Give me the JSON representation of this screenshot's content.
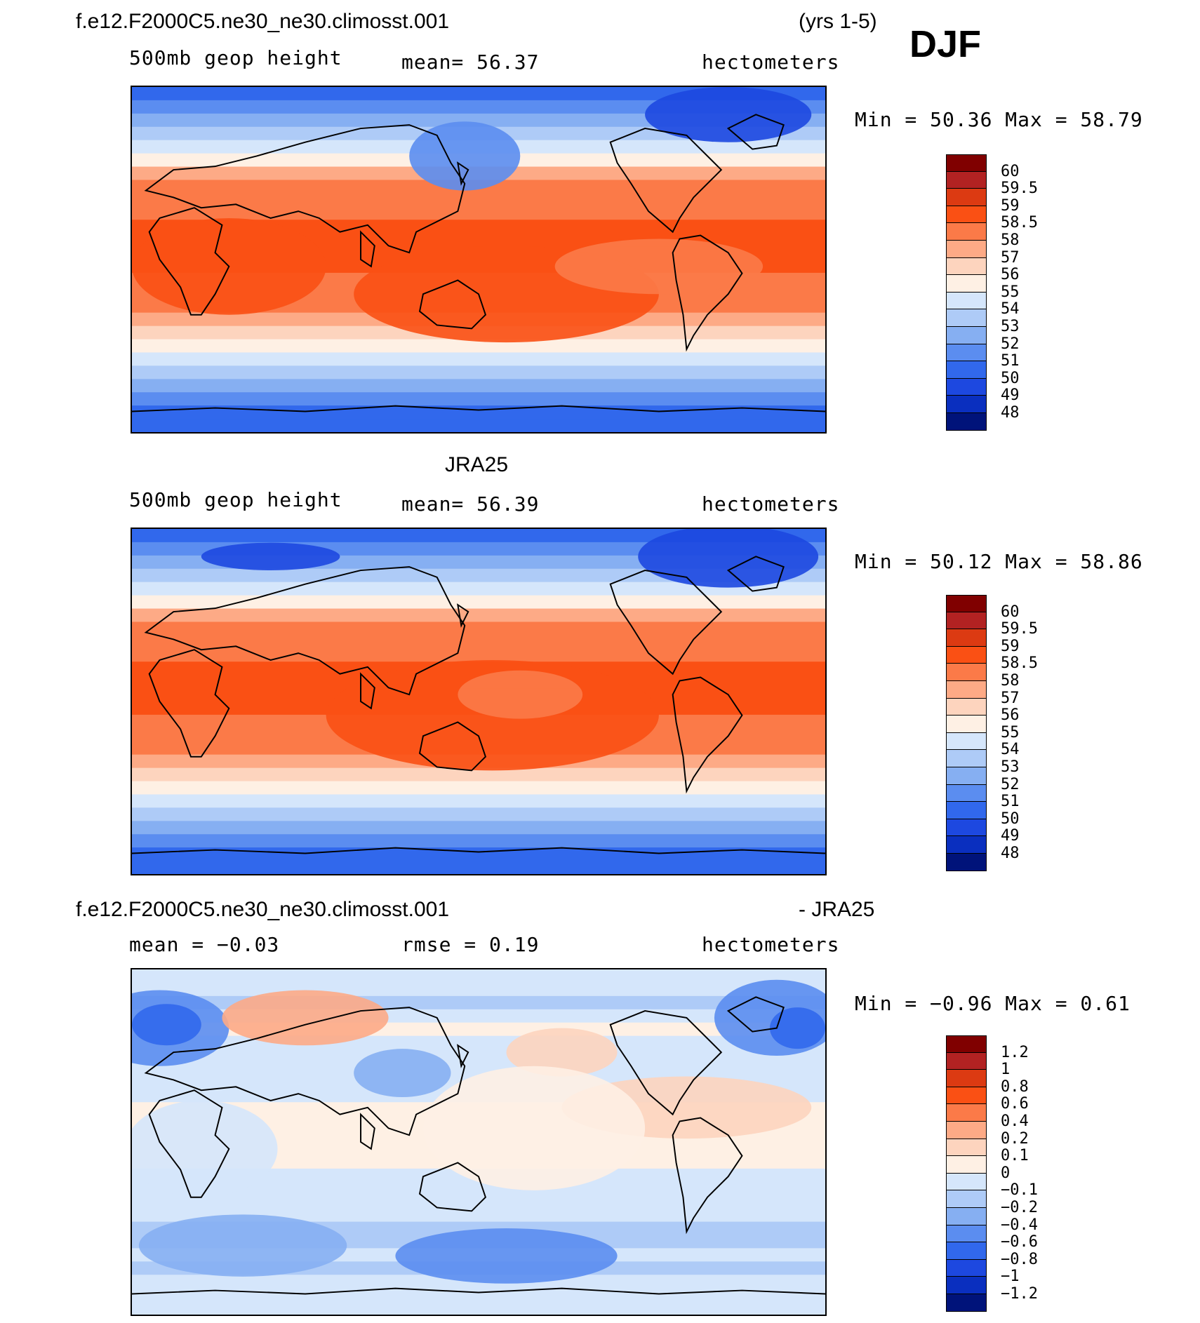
{
  "header": {
    "case_name": "f.e12.F2000C5.ne30_ne30.climosst.001",
    "years": "(yrs 1-5)",
    "season": "DJF"
  },
  "panels": [
    {
      "id": "model",
      "title": "",
      "variable": "500mb geop height",
      "stat_text": "mean=   56.37",
      "units": "hectometers",
      "minmax_text": "Min =   50.36 Max =   58.79"
    },
    {
      "id": "obs",
      "title": "JRA25",
      "variable": "500mb geop height",
      "stat_text": "mean=   56.39",
      "units": "hectometers",
      "minmax_text": "Min =   50.12 Max =   58.86"
    },
    {
      "id": "diff",
      "title_left": "f.e12.F2000C5.ne30_ne30.climosst.001",
      "title_right": "- JRA25",
      "stat_left": "mean =   −0.03",
      "stat_mid": "rmse =    0.19",
      "units": "hectometers",
      "minmax_text": "Min =   −0.96 Max =    0.61"
    }
  ],
  "chart_data": [
    {
      "type": "heatmap",
      "title": "500mb geop height (model)",
      "units": "hectometers",
      "mean": 56.37,
      "min": 50.36,
      "max": 58.79,
      "colorbar_levels": [
        "60",
        "59.5",
        "59",
        "58.5",
        "58",
        "57",
        "56",
        "55",
        "54",
        "53",
        "52",
        "51",
        "50",
        "49",
        "48"
      ]
    },
    {
      "type": "heatmap",
      "title": "500mb geop height (JRA25)",
      "units": "hectometers",
      "mean": 56.39,
      "min": 50.12,
      "max": 58.86,
      "colorbar_levels": [
        "60",
        "59.5",
        "59",
        "58.5",
        "58",
        "57",
        "56",
        "55",
        "54",
        "53",
        "52",
        "51",
        "50",
        "49",
        "48"
      ]
    },
    {
      "type": "heatmap",
      "title": "model - JRA25",
      "units": "hectometers",
      "mean": -0.03,
      "rmse": 0.19,
      "min": -0.96,
      "max": 0.61,
      "colorbar_levels": [
        "1.2",
        "1",
        "0.8",
        "0.6",
        "0.4",
        "0.2",
        "0.1",
        "0",
        "−0.1",
        "−0.2",
        "−0.4",
        "−0.6",
        "−0.8",
        "−1",
        "−1.2"
      ]
    }
  ],
  "colors": {
    "abs_scale": [
      "#800000",
      "#b22222",
      "#dc3a12",
      "#fa5014",
      "#fb7a48",
      "#fdaa86",
      "#fdd4be",
      "#fef0e4",
      "#d5e6fb",
      "#aecbf7",
      "#86aff2",
      "#5b8df0",
      "#3168ec",
      "#1d48e0",
      "#0a2fbf",
      "#00137a"
    ],
    "diff_scale": [
      "#800000",
      "#b22222",
      "#dc3a12",
      "#fa5014",
      "#fb7a48",
      "#fdaa86",
      "#fdd4be",
      "#fef0e4",
      "#d5e6fb",
      "#aecbf7",
      "#86aff2",
      "#5b8df0",
      "#3168ec",
      "#1d48e0",
      "#0a2fbf",
      "#00137a"
    ]
  }
}
